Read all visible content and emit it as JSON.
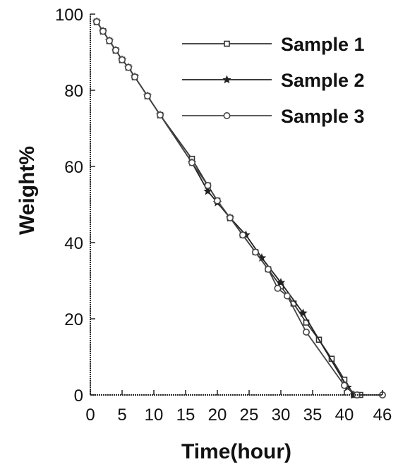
{
  "chart_data": {
    "type": "line",
    "xlabel": "Time(hour)",
    "ylabel": "Weight%",
    "xlim": [
      0,
      46
    ],
    "ylim": [
      0,
      100
    ],
    "x_ticks": [
      0,
      5,
      10,
      15,
      20,
      25,
      30,
      35,
      40,
      46
    ],
    "y_ticks": [
      0,
      20,
      40,
      60,
      80,
      100
    ],
    "x_tick_labels": [
      "0",
      "5",
      "10",
      "15",
      "20",
      "25",
      "30",
      "35",
      "40",
      "46"
    ],
    "y_tick_labels": [
      "0",
      "20",
      "40",
      "60",
      "80",
      "100"
    ],
    "grid": false,
    "legend_position": "top-right",
    "series": [
      {
        "name": "Sample 1",
        "marker": "square",
        "color": "#333333",
        "x": [
          1,
          2,
          3,
          4,
          5,
          6,
          7,
          9,
          11,
          16,
          18.5,
          20,
          22,
          24,
          26,
          28,
          30,
          32,
          34,
          36,
          38,
          40,
          41.5,
          42.5
        ],
        "y": [
          98,
          95.5,
          93,
          90.5,
          88,
          86,
          83.5,
          78.5,
          73.5,
          62,
          55,
          51,
          46.5,
          42,
          37.5,
          33,
          28.5,
          24,
          19,
          14.5,
          9.5,
          4,
          0,
          0
        ]
      },
      {
        "name": "Sample 2",
        "marker": "star",
        "color": "#222222",
        "x": [
          1,
          2,
          3,
          4,
          5,
          6,
          7,
          9,
          11,
          16,
          18.5,
          20,
          22,
          24.5,
          27,
          30,
          33.5,
          40.5,
          41.5
        ],
        "y": [
          98,
          95.5,
          93,
          90.5,
          88,
          86,
          83.5,
          78.5,
          73.5,
          61,
          53.5,
          50.5,
          46.5,
          42,
          36,
          29.5,
          21.5,
          2,
          0
        ]
      },
      {
        "name": "Sample 3",
        "marker": "circle",
        "color": "#444444",
        "x": [
          1,
          2,
          3,
          4,
          5,
          6,
          7,
          9,
          11,
          16,
          18.5,
          20,
          22,
          24,
          26,
          28,
          29.5,
          31,
          34,
          40,
          42,
          46
        ],
        "y": [
          98,
          95.5,
          93,
          90.5,
          88,
          86,
          83.5,
          78.5,
          73.5,
          61,
          55,
          51,
          46.5,
          42,
          37.5,
          33,
          28,
          26,
          16.5,
          2.5,
          0,
          0
        ]
      }
    ]
  }
}
